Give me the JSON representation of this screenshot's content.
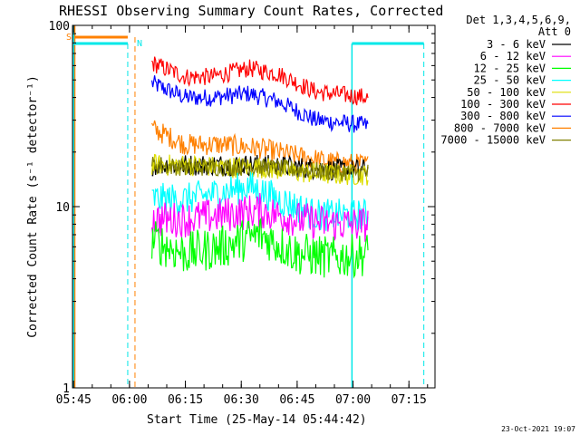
{
  "chart_data": {
    "type": "line",
    "title": "RHESSI Observing Summary Count Rates, Corrected",
    "xlabel": "Start Time (25-May-14 05:44:42)",
    "ylabel": "Corrected Count Rate (s⁻¹ detector⁻¹)",
    "yscale": "log",
    "ylim": [
      1,
      100
    ],
    "xlim": [
      "05:44:42",
      "07:22:00"
    ],
    "x_ticks": [
      "05:45",
      "06:00",
      "06:15",
      "06:30",
      "06:45",
      "07:00",
      "07:15"
    ],
    "y_ticks": [
      "1",
      "10",
      "100"
    ],
    "footer_date": "23-Oct-2021 19:07",
    "legend_header": [
      "Det 1,3,4,5,6,9,",
      "Att 0"
    ],
    "legend_position": "right",
    "data_gap": {
      "start": "06:00:30",
      "end": "06:06:00"
    },
    "flags": [
      {
        "letter": "S",
        "color": "#ff8000"
      },
      {
        "letter": "N",
        "color": "#00e8e8"
      }
    ],
    "series": [
      {
        "name": "3 - 6 keV",
        "color": "#000000",
        "x": [
          "06:06",
          "06:15",
          "06:25",
          "06:35",
          "06:45",
          "06:55",
          "07:04"
        ],
        "y": [
          17,
          17,
          17,
          17,
          16.5,
          16,
          16
        ]
      },
      {
        "name": "6 - 12 keV",
        "color": "#ff00ff",
        "x": [
          "06:06",
          "06:15",
          "06:25",
          "06:35",
          "06:45",
          "06:55",
          "07:04"
        ],
        "y": [
          8.5,
          8.5,
          9,
          9.5,
          8.5,
          8,
          8
        ]
      },
      {
        "name": "12 - 25 keV",
        "color": "#00ff00",
        "x": [
          "06:06",
          "06:15",
          "06:25",
          "06:35",
          "06:45",
          "06:55",
          "07:04"
        ],
        "y": [
          6.5,
          5.5,
          6,
          7,
          5.5,
          5.2,
          5.5
        ]
      },
      {
        "name": "25 - 50 keV",
        "color": "#00ffff",
        "x": [
          "06:06",
          "06:15",
          "06:25",
          "06:32",
          "06:40",
          "06:50",
          "07:04"
        ],
        "y": [
          11,
          11,
          12,
          13,
          11,
          9,
          9
        ]
      },
      {
        "name": "50 - 100 keV",
        "color": "#dddd00",
        "x": [
          "06:06",
          "06:15",
          "06:25",
          "06:35",
          "06:45",
          "06:55",
          "07:04"
        ],
        "y": [
          17,
          17,
          16.5,
          16.5,
          15.5,
          15,
          15
        ]
      },
      {
        "name": "100 - 300 keV",
        "color": "#ff0000",
        "x": [
          "06:06",
          "06:15",
          "06:22",
          "06:32",
          "06:40",
          "06:50",
          "07:04"
        ],
        "y": [
          62,
          52,
          52,
          58,
          54,
          43,
          40
        ]
      },
      {
        "name": "300 - 800 keV",
        "color": "#0000ff",
        "x": [
          "06:06",
          "06:15",
          "06:22",
          "06:32",
          "06:40",
          "06:50",
          "07:04"
        ],
        "y": [
          48,
          40,
          40,
          42,
          38,
          30,
          28
        ]
      },
      {
        "name": "800 - 7000 keV",
        "color": "#ff8000",
        "x": [
          "06:06",
          "06:15",
          "06:25",
          "06:35",
          "06:45",
          "06:55",
          "07:04"
        ],
        "y": [
          27,
          22,
          22,
          21,
          19,
          17.5,
          17
        ]
      },
      {
        "name": "7000 - 15000 keV",
        "color": "#808000",
        "x": [
          "06:06",
          "06:15",
          "06:25",
          "06:35",
          "06:45",
          "06:55",
          "07:04"
        ],
        "y": [
          17,
          16.5,
          16.5,
          16.5,
          16,
          15.5,
          15.5
        ]
      }
    ]
  }
}
